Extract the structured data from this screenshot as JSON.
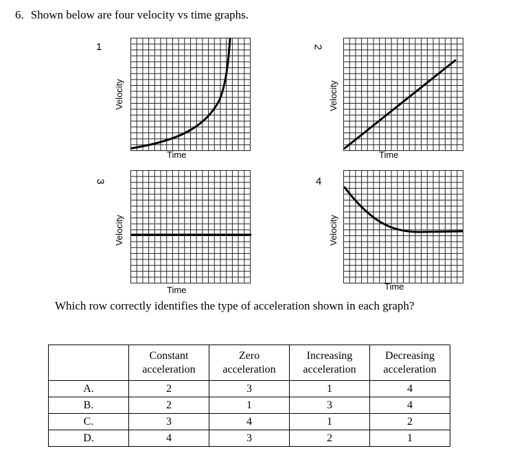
{
  "question": {
    "number": "6.",
    "text": "Shown below are four velocity vs time graphs."
  },
  "graphs": [
    {
      "id": "1",
      "ylabel": "Velocity",
      "xlabel": "Time",
      "curve": "increasing-acceleration"
    },
    {
      "id": "2",
      "ylabel": "Velocity",
      "xlabel": "Time",
      "curve": "constant-acceleration"
    },
    {
      "id": "3",
      "ylabel": "Velocity",
      "xlabel": "Time",
      "curve": "zero-acceleration"
    },
    {
      "id": "4",
      "ylabel": "Velocity",
      "xlabel": "Time",
      "curve": "decreasing-acceleration"
    }
  ],
  "prompt": "Which row correctly identifies the type of acceleration shown in each graph?",
  "table": {
    "headers": [
      [
        "",
        ""
      ],
      [
        "Constant",
        "acceleration"
      ],
      [
        "Zero",
        "acceleration"
      ],
      [
        "Increasing",
        "acceleration"
      ],
      [
        "Decreasing",
        "acceleration"
      ]
    ],
    "rows": [
      [
        "A.",
        "2",
        "3",
        "1",
        "4"
      ],
      [
        "B.",
        "2",
        "1",
        "3",
        "4"
      ],
      [
        "C.",
        "3",
        "4",
        "1",
        "2"
      ],
      [
        "D.",
        "4",
        "3",
        "2",
        "1"
      ]
    ]
  }
}
